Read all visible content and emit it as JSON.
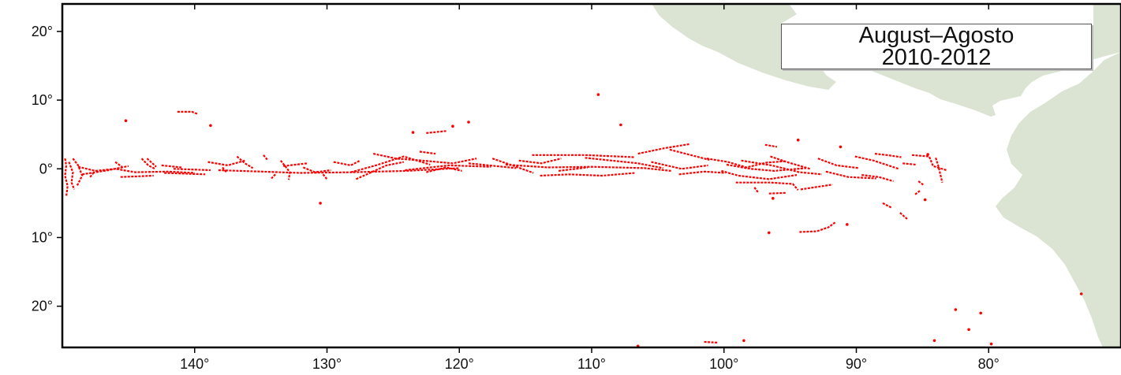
{
  "map": {
    "colors": {
      "land": "#dbe4d2",
      "ocean": "#ffffff",
      "track": "#ff0000",
      "frame": "#000000"
    },
    "legend": {
      "line1": "August–Agosto",
      "line2": "2010-2012"
    },
    "lat_labels": [
      {
        "value": 20,
        "text": "20°"
      },
      {
        "value": 10,
        "text": "10°"
      },
      {
        "value": 0,
        "text": "0°"
      },
      {
        "value": -10,
        "text": "10°"
      },
      {
        "value": -20,
        "text": "20°"
      }
    ],
    "lon_labels": [
      {
        "value": -140,
        "text": "140°"
      },
      {
        "value": -130,
        "text": "130°"
      },
      {
        "value": -120,
        "text": "120°"
      },
      {
        "value": -110,
        "text": "110°"
      },
      {
        "value": -100,
        "text": "100°"
      },
      {
        "value": -90,
        "text": "90°"
      },
      {
        "value": -80,
        "text": "80°"
      }
    ],
    "extent": {
      "lon": [
        -150,
        -70
      ],
      "lat": [
        -26,
        24
      ]
    },
    "tracks": [
      [
        [
          -149.8,
          1.5
        ],
        [
          -149.7,
          0.5
        ],
        [
          -149.8,
          -1
        ],
        [
          -149.6,
          -2.5
        ],
        [
          -149.7,
          -4
        ]
      ],
      [
        [
          -149.5,
          1
        ],
        [
          -149.2,
          -0.5
        ],
        [
          -149.3,
          -2
        ],
        [
          -149.1,
          -3
        ]
      ],
      [
        [
          -149.2,
          1.5
        ],
        [
          -148.8,
          0.5
        ],
        [
          -148.5,
          -1
        ],
        [
          -148.9,
          -2.5
        ]
      ],
      [
        [
          -148.8,
          0.3
        ],
        [
          -147.5,
          -0.3
        ],
        [
          -146,
          0
        ],
        [
          -144.5,
          -0.5
        ],
        [
          -142,
          -0.4
        ],
        [
          -140,
          -0.6
        ]
      ],
      [
        [
          -148.5,
          -0.8
        ],
        [
          -146.5,
          -0.2
        ],
        [
          -145,
          0.4
        ]
      ],
      [
        [
          -147.9,
          -1.2
        ],
        [
          -147.6,
          -0.5
        ]
      ],
      [
        [
          -146,
          1
        ],
        [
          -145.5,
          0.3
        ]
      ],
      [
        [
          -144,
          1.5
        ],
        [
          -143.5,
          0.5
        ],
        [
          -143,
          0
        ]
      ],
      [
        [
          -142.5,
          0.5
        ],
        [
          -141,
          0.2
        ]
      ],
      [
        [
          -141.3,
          8.3
        ],
        [
          -140.2,
          8.3
        ],
        [
          -139.8,
          8
        ]
      ],
      [
        [
          -145.2,
          7
        ]
      ],
      [
        [
          -138.8,
          6.3
        ]
      ],
      [
        [
          -143.6,
          1.5
        ],
        [
          -142.9,
          0.3
        ]
      ],
      [
        [
          -141.6,
          0
        ],
        [
          -138.8,
          -0.2
        ]
      ],
      [
        [
          -138.2,
          -0.2
        ],
        [
          -135,
          -0.4
        ],
        [
          -132,
          -0.6
        ],
        [
          -128,
          -0.5
        ],
        [
          -124,
          -0.3
        ],
        [
          -120,
          0.1
        ]
      ],
      [
        [
          -139,
          1
        ],
        [
          -137.5,
          0.5
        ],
        [
          -136.2,
          1.2
        ]
      ],
      [
        [
          -136.8,
          1.8
        ],
        [
          -136.2,
          0.8
        ],
        [
          -135.6,
          0.1
        ]
      ],
      [
        [
          -134.8,
          2
        ],
        [
          -134.5,
          1.3
        ]
      ],
      [
        [
          -133.5,
          1.2
        ],
        [
          -132.8,
          -0.5
        ],
        [
          -132.9,
          -1.6
        ]
      ],
      [
        [
          -133.3,
          0.4
        ],
        [
          -131.5,
          0.8
        ]
      ],
      [
        [
          -131.8,
          0.2
        ],
        [
          -130.9,
          -0.5
        ],
        [
          -129.7,
          -0.2
        ]
      ],
      [
        [
          -129.5,
          1
        ],
        [
          -128.2,
          0.5
        ],
        [
          -127.5,
          1.2
        ]
      ],
      [
        [
          -128.2,
          -0.5
        ],
        [
          -126.3,
          0.5
        ],
        [
          -124.2,
          1.8
        ],
        [
          -122.2,
          0.6
        ]
      ],
      [
        [
          -126.5,
          2.2
        ],
        [
          -124.8,
          1.5
        ],
        [
          -122.8,
          1.2
        ],
        [
          -120.5,
          0.8
        ],
        [
          -118.7,
          1.5
        ]
      ],
      [
        [
          -127.8,
          -1.5
        ],
        [
          -125.5,
          0.5
        ],
        [
          -124.2,
          1
        ]
      ],
      [
        [
          -122.5,
          -0.5
        ],
        [
          -121,
          0.2
        ],
        [
          -119.8,
          -0.3
        ]
      ],
      [
        [
          -124.1,
          -0.2
        ],
        [
          -120.8,
          0.5
        ],
        [
          -117.6,
          0.3
        ]
      ],
      [
        [
          -123,
          2.5
        ],
        [
          -121.8,
          2.2
        ]
      ],
      [
        [
          -122.5,
          5.2
        ],
        [
          -121,
          5.5
        ]
      ],
      [
        [
          -123.5,
          5.3
        ]
      ],
      [
        [
          -120.5,
          6.2
        ]
      ],
      [
        [
          -119.3,
          6.8
        ]
      ],
      [
        [
          -130.3,
          -0.8
        ],
        [
          -130,
          -1.5
        ]
      ],
      [
        [
          -133.9,
          -0.8
        ],
        [
          -134.2,
          -1.4
        ]
      ],
      [
        [
          -137.9,
          0.2
        ],
        [
          -137.6,
          -0.5
        ]
      ],
      [
        [
          -145.6,
          -1.2
        ],
        [
          -143.1,
          -1
        ]
      ],
      [
        [
          -142.3,
          -0.6
        ],
        [
          -139.2,
          -0.8
        ]
      ],
      [
        [
          -119.3,
          0.8
        ],
        [
          -115.7,
          0.1
        ]
      ],
      [
        [
          -117.5,
          1.5
        ],
        [
          -116,
          0.5
        ],
        [
          -114.4,
          -0.6
        ]
      ],
      [
        [
          -116.5,
          0.6
        ],
        [
          -113.3,
          0.2
        ],
        [
          -110,
          0.3
        ],
        [
          -106,
          0.1
        ],
        [
          -104,
          -0.3
        ]
      ],
      [
        [
          -114.5,
          2
        ],
        [
          -110.5,
          2
        ],
        [
          -106.8,
          1.7
        ]
      ],
      [
        [
          -115.5,
          1.2
        ],
        [
          -113.8,
          0.8
        ],
        [
          -112.3,
          1.5
        ]
      ],
      [
        [
          -113.9,
          -1
        ],
        [
          -111.7,
          -0.8
        ],
        [
          -109.2,
          -1
        ],
        [
          -106.7,
          -0.6
        ]
      ],
      [
        [
          -112.5,
          -0.3
        ],
        [
          -110.3,
          0.2
        ]
      ],
      [
        [
          -110.5,
          1.6
        ],
        [
          -108.5,
          1.2
        ],
        [
          -106.5,
          0.8
        ],
        [
          -104.6,
          0.1
        ]
      ],
      [
        [
          -109.5,
          10.8
        ]
      ],
      [
        [
          -107.8,
          6.4
        ]
      ],
      [
        [
          -106.5,
          2.2
        ],
        [
          -104.5,
          3
        ],
        [
          -102.6,
          3.6
        ]
      ],
      [
        [
          -105.5,
          1
        ],
        [
          -103.2,
          0
        ],
        [
          -101.2,
          0.5
        ]
      ],
      [
        [
          -104.1,
          2.8
        ],
        [
          -102.5,
          2
        ],
        [
          -101.1,
          1.3
        ]
      ],
      [
        [
          -103.4,
          -0.8
        ],
        [
          -101.5,
          -0.4
        ],
        [
          -99.9,
          -0.6
        ]
      ],
      [
        [
          -101.3,
          1.5
        ],
        [
          -99.7,
          1
        ],
        [
          -98.3,
          0.2
        ],
        [
          -96.8,
          0.9
        ],
        [
          -95.4,
          1.1
        ]
      ],
      [
        [
          -100.2,
          -0.3
        ],
        [
          -98.9,
          -1
        ],
        [
          -96.6,
          -1.5
        ],
        [
          -94.5,
          -0.9
        ]
      ],
      [
        [
          -99.8,
          0.6
        ],
        [
          -98,
          0
        ],
        [
          -96.2,
          -0.3
        ],
        [
          -93.8,
          0.1
        ]
      ],
      [
        [
          -98.7,
          1.2
        ],
        [
          -96.4,
          0.5
        ],
        [
          -94.3,
          -0.5
        ],
        [
          -92.6,
          -0.8
        ]
      ],
      [
        [
          -96.5,
          1.8
        ],
        [
          -95.1,
          0.9
        ],
        [
          -93.5,
          0
        ]
      ],
      [
        [
          -96.9,
          3.5
        ],
        [
          -96,
          3.2
        ]
      ],
      [
        [
          -94.4,
          4.2
        ]
      ],
      [
        [
          -99.1,
          -2
        ],
        [
          -96.5,
          -2
        ],
        [
          -94.8,
          -2.2
        ],
        [
          -94.4,
          -3.1
        ]
      ],
      [
        [
          -94.2,
          -3
        ],
        [
          -91.8,
          -2.3
        ]
      ],
      [
        [
          -96.6,
          -3.6
        ],
        [
          -95.3,
          -3.5
        ]
      ],
      [
        [
          -97.7,
          -2.7
        ],
        [
          -97.4,
          -3.5
        ]
      ],
      [
        [
          -92.9,
          1.5
        ],
        [
          -91.5,
          0.5
        ],
        [
          -89.8,
          0.1
        ]
      ],
      [
        [
          -92.3,
          -0.4
        ],
        [
          -90.6,
          -1.2
        ],
        [
          -88.5,
          -1.4
        ]
      ],
      [
        [
          -91.2,
          3.2
        ]
      ],
      [
        [
          -90.1,
          1.8
        ],
        [
          -88.7,
          1.2
        ],
        [
          -87.6,
          0.5
        ],
        [
          -86.8,
          0
        ]
      ],
      [
        [
          -89.6,
          -0.9
        ],
        [
          -88.3,
          -1.2
        ],
        [
          -87.2,
          -1.8
        ]
      ],
      [
        [
          -88.6,
          2.2
        ],
        [
          -87.7,
          2
        ],
        [
          -86.6,
          1.7
        ]
      ],
      [
        [
          -86.5,
          0.8
        ],
        [
          -85.5,
          0.6
        ]
      ],
      [
        [
          -85.8,
          2
        ],
        [
          -84.5,
          1.8
        ],
        [
          -84.2,
          0.4
        ],
        [
          -83.2,
          -0.2
        ]
      ],
      [
        [
          -84,
          1.6
        ],
        [
          -83.8,
          0.4
        ],
        [
          -83.5,
          -2
        ]
      ],
      [
        [
          -85.2,
          -3.2
        ],
        [
          -85.6,
          -3.8
        ]
      ],
      [
        [
          -84.8,
          -4.5
        ]
      ],
      [
        [
          -88,
          -5
        ],
        [
          -87.3,
          -5.7
        ]
      ],
      [
        [
          -86.7,
          -6.4
        ],
        [
          -86.1,
          -7.4
        ]
      ],
      [
        [
          -94.3,
          -9.2
        ],
        [
          -93,
          -9.1
        ],
        [
          -92.1,
          -8.5
        ],
        [
          -91.6,
          -7.8
        ]
      ],
      [
        [
          -90.7,
          -8.1
        ]
      ],
      [
        [
          -96.6,
          -9.3
        ]
      ],
      [
        [
          -96.3,
          -4.3
        ]
      ],
      [
        [
          -130.5,
          -5
        ]
      ],
      [
        [
          -85.3,
          -1.8
        ],
        [
          -84.9,
          -2.4
        ]
      ],
      [
        [
          -82.5,
          -20.5
        ]
      ],
      [
        [
          -80.6,
          -21
        ]
      ],
      [
        [
          -81.5,
          -23.4
        ]
      ],
      [
        [
          -79.8,
          -25.5
        ]
      ],
      [
        [
          -73,
          -18.2
        ]
      ],
      [
        [
          -84.1,
          -25
        ]
      ],
      [
        [
          -101.5,
          -25.2
        ],
        [
          -100.5,
          -25.3
        ]
      ],
      [
        [
          -98.5,
          -25
        ]
      ],
      [
        [
          -106.5,
          -25.8
        ]
      ],
      [
        [
          -84.6,
          2.1
        ]
      ]
    ]
  }
}
